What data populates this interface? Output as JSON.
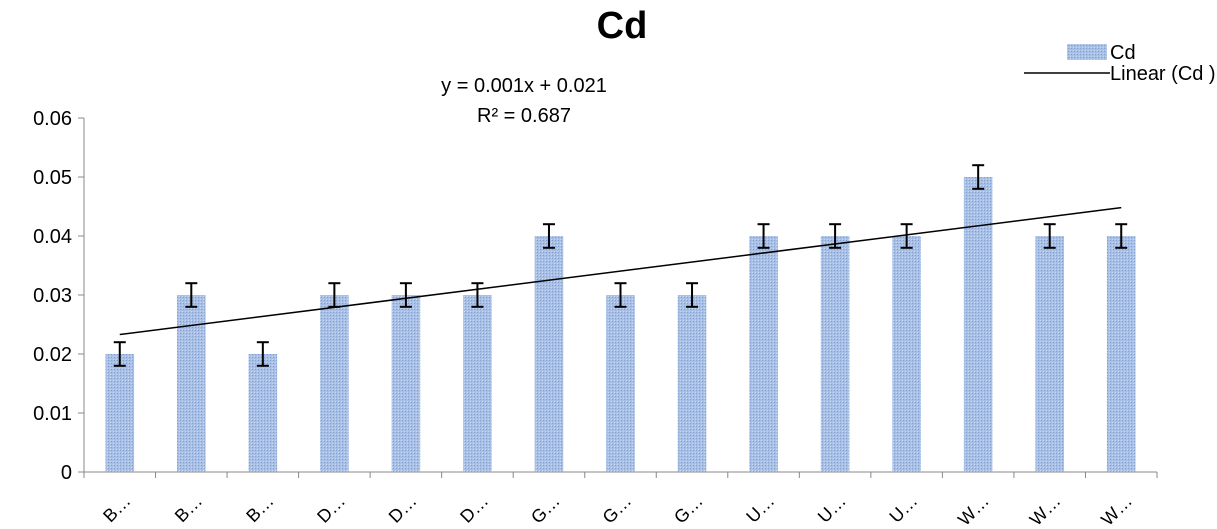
{
  "chart_data": {
    "type": "bar",
    "title": "Cd",
    "categories": [
      "B…",
      "B…",
      "B…",
      "D…",
      "D…",
      "D…",
      "G…",
      "G…",
      "G…",
      "U…",
      "U…",
      "U…",
      "W…",
      "W…",
      "W…"
    ],
    "series": [
      {
        "name": "Cd",
        "values": [
          0.02,
          0.03,
          0.02,
          0.03,
          0.03,
          0.03,
          0.04,
          0.03,
          0.03,
          0.04,
          0.04,
          0.04,
          0.05,
          0.04,
          0.04
        ],
        "error": [
          0.002,
          0.002,
          0.002,
          0.002,
          0.002,
          0.002,
          0.002,
          0.002,
          0.002,
          0.002,
          0.002,
          0.002,
          0.002,
          0.002,
          0.002
        ],
        "color": "#9bb7e0"
      }
    ],
    "trendline": {
      "name": "Linear (Cd )",
      "slope": 0.001,
      "intercept": 0.021,
      "equation": "y = 0.001x + 0.021",
      "r_squared": "R² = 0.687",
      "color": "#000000"
    },
    "ylim": [
      0,
      0.06
    ],
    "yticks": [
      "0",
      "0.01",
      "0.02",
      "0.03",
      "0.04",
      "0.05",
      "0.06"
    ],
    "xlabel": "",
    "ylabel": "",
    "legend": "top-right",
    "grid": false
  }
}
